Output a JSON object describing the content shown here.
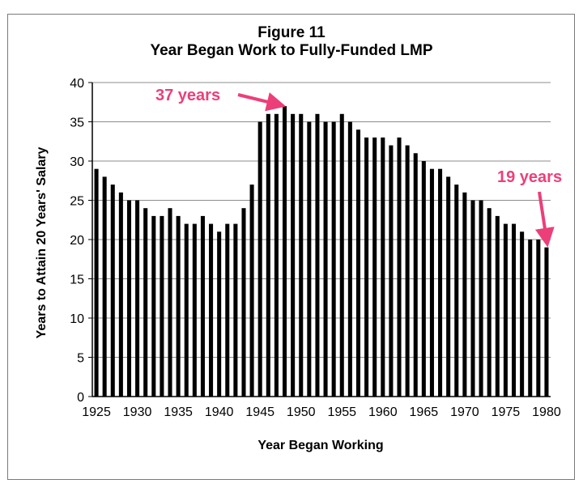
{
  "chart_data": {
    "type": "bar",
    "title": "Figure 11",
    "subtitle": "Year Began Work to Fully-Funded LMP",
    "xlabel": "Year Began Working",
    "ylabel": "Years to Attain 20 Years' Salary",
    "ylim": [
      0,
      40
    ],
    "yticks": [
      0,
      5,
      10,
      15,
      20,
      25,
      30,
      35,
      40
    ],
    "xticks": [
      1925,
      1930,
      1935,
      1940,
      1945,
      1950,
      1955,
      1960,
      1965,
      1970,
      1975,
      1980
    ],
    "grid": "horizontal",
    "bar_color": "#000000",
    "annotation_color": "#ec3f7a",
    "categories": [
      1925,
      1926,
      1927,
      1928,
      1929,
      1930,
      1931,
      1932,
      1933,
      1934,
      1935,
      1936,
      1937,
      1938,
      1939,
      1940,
      1941,
      1942,
      1943,
      1944,
      1945,
      1946,
      1947,
      1948,
      1949,
      1950,
      1951,
      1952,
      1953,
      1954,
      1955,
      1956,
      1957,
      1958,
      1959,
      1960,
      1961,
      1962,
      1963,
      1964,
      1965,
      1966,
      1967,
      1968,
      1969,
      1970,
      1971,
      1972,
      1973,
      1974,
      1975,
      1976,
      1977,
      1978,
      1979,
      1980
    ],
    "values": [
      29,
      28,
      27,
      26,
      25,
      25,
      24,
      23,
      23,
      24,
      23,
      22,
      22,
      23,
      22,
      21,
      22,
      22,
      24,
      27,
      35,
      36,
      36,
      37,
      36,
      36,
      35,
      36,
      35,
      35,
      36,
      35,
      34,
      33,
      33,
      33,
      32,
      33,
      32,
      31,
      30,
      29,
      29,
      28,
      27,
      26,
      25,
      25,
      24,
      23,
      22,
      22,
      21,
      20,
      20,
      19
    ],
    "annotations": [
      {
        "text": "37 years",
        "target_year": 1948,
        "target_value": 37
      },
      {
        "text": "19 years",
        "target_year": 1980,
        "target_value": 19
      }
    ]
  }
}
